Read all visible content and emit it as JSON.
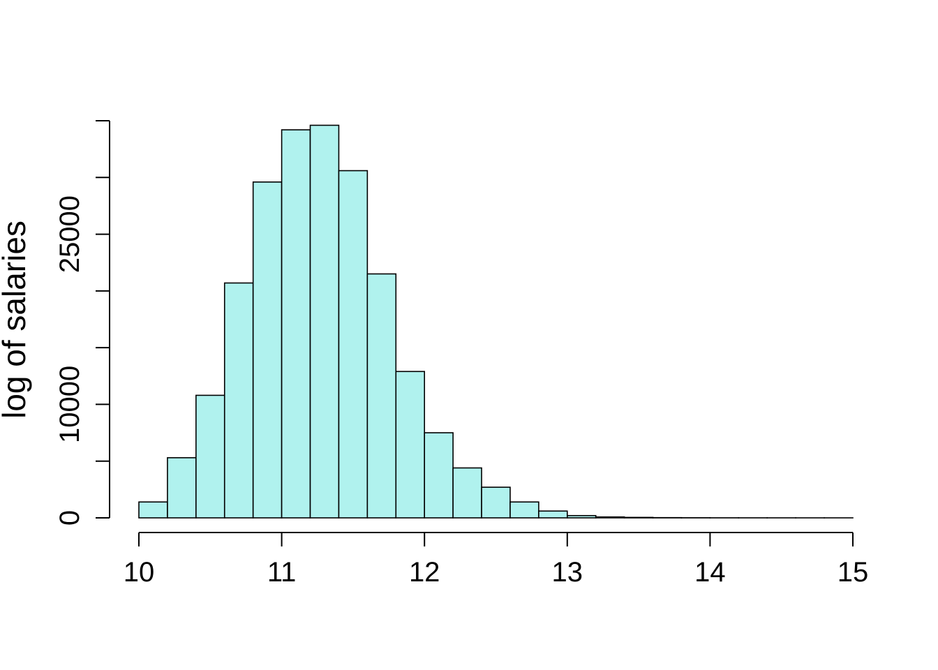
{
  "chart_data": {
    "type": "histogram",
    "title": "",
    "xlabel": "",
    "ylabel": "log of salaries",
    "bar_color": "#b0f2ee",
    "edge_color": "#000000",
    "xlim": [
      10,
      15
    ],
    "ylim": [
      0,
      35000
    ],
    "x_ticks": [
      10,
      11,
      12,
      13,
      14,
      15
    ],
    "y_ticks": [
      0,
      5000,
      10000,
      15000,
      20000,
      25000,
      30000,
      35000
    ],
    "y_tick_labels": [
      "0",
      "",
      "10000",
      "",
      "",
      "25000",
      "",
      ""
    ],
    "bin_width": 0.2,
    "bin_starts": [
      10.0,
      10.2,
      10.4,
      10.6,
      10.8,
      11.0,
      11.2,
      11.4,
      11.6,
      11.8,
      12.0,
      12.2,
      12.4,
      12.6,
      12.8,
      13.0,
      13.2,
      13.4,
      13.6,
      13.8,
      14.0,
      14.2,
      14.4,
      14.6,
      14.8
    ],
    "values": [
      1400,
      5300,
      10800,
      20700,
      29600,
      34200,
      34600,
      30600,
      21500,
      12900,
      7500,
      4400,
      2700,
      1400,
      600,
      200,
      80,
      40,
      20,
      10,
      5,
      3,
      2,
      1,
      1
    ],
    "grid": false,
    "legend": "none"
  }
}
